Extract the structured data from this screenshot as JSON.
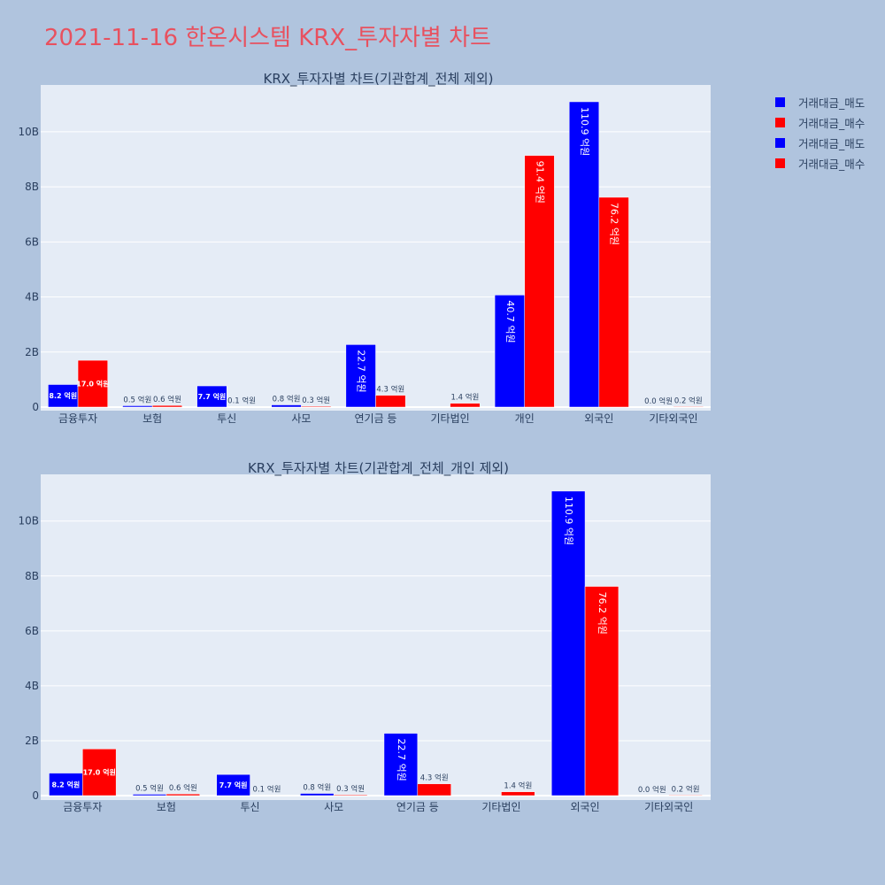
{
  "page": {
    "title": "2021-11-16 한온시스템 KRX_투자자별 차트"
  },
  "colors": {
    "sell": "#0000ff",
    "buy": "#ff0000",
    "title": "#e8515f",
    "plot_bg": "#e5ecf6",
    "page_bg": "#b0c4de"
  },
  "legend": [
    {
      "label": "거래대금_매도",
      "color": "#0000ff"
    },
    {
      "label": "거래대금_매수",
      "color": "#ff0000"
    },
    {
      "label": "거래대금_매도",
      "color": "#0000ff"
    },
    {
      "label": "거래대금_매수",
      "color": "#ff0000"
    }
  ],
  "chart_data": [
    {
      "type": "bar",
      "title": "KRX_투자자별 차트(기관합계_전체 제외)",
      "categories": [
        "금융투자",
        "보험",
        "투신",
        "사모",
        "연기금 등",
        "기타법인",
        "개인",
        "외국인",
        "기타외국인"
      ],
      "series": [
        {
          "name": "거래대금_매도",
          "color": "#0000ff",
          "values": [
            820000000,
            50000000,
            770000000,
            80000000,
            2270000000,
            0,
            4070000000,
            11090000000,
            0
          ],
          "labels": [
            "8.2 억원",
            "0.5 억원",
            "7.7 억원",
            "0.8 억원",
            "22.7 억원",
            "",
            "40.7 억원",
            "110.9 억원",
            "0.0 억원"
          ]
        },
        {
          "name": "거래대금_매수",
          "color": "#ff0000",
          "values": [
            1700000000,
            60000000,
            10000000,
            30000000,
            430000000,
            140000000,
            9140000000,
            7620000000,
            20000000
          ],
          "labels": [
            "17.0 억원",
            "0.6 억원",
            "0.1 억원",
            "0.3 억원",
            "4.3 억원",
            "1.4 억원",
            "91.4 억원",
            "76.2 억원",
            "0.2 억원"
          ]
        }
      ],
      "yticks": [
        "0",
        "2B",
        "4B",
        "6B",
        "8B",
        "10B"
      ],
      "ylim": [
        0,
        11700000000
      ],
      "grid": true
    },
    {
      "type": "bar",
      "title": "KRX_투자자별 차트(기관합계_전체_개인 제외)",
      "categories": [
        "금융투자",
        "보험",
        "투신",
        "사모",
        "연기금 등",
        "기타법인",
        "외국인",
        "기타외국인"
      ],
      "series": [
        {
          "name": "거래대금_매도",
          "color": "#0000ff",
          "values": [
            820000000,
            50000000,
            770000000,
            80000000,
            2270000000,
            0,
            11090000000,
            0
          ],
          "labels": [
            "8.2 억원",
            "0.5 억원",
            "7.7 억원",
            "0.8 억원",
            "22.7 억원",
            "",
            "110.9 억원",
            "0.0 억원"
          ]
        },
        {
          "name": "거래대금_매수",
          "color": "#ff0000",
          "values": [
            1700000000,
            60000000,
            10000000,
            30000000,
            430000000,
            140000000,
            7620000000,
            20000000
          ],
          "labels": [
            "17.0 억원",
            "0.6 억원",
            "0.1 억원",
            "0.3 억원",
            "4.3 억원",
            "1.4 억원",
            "76.2 억원",
            "0.2 억원"
          ]
        }
      ],
      "yticks": [
        "0",
        "2B",
        "4B",
        "6B",
        "8B",
        "10B"
      ],
      "ylim": [
        0,
        11700000000
      ],
      "grid": true
    }
  ]
}
